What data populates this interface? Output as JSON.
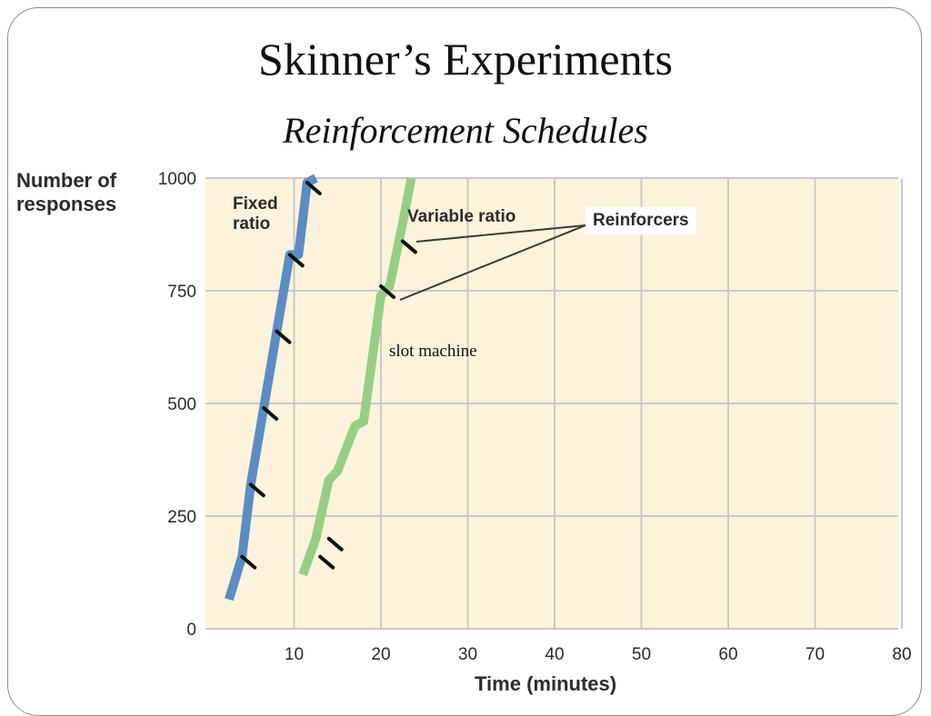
{
  "slide": {
    "title": "Skinner’s Experiments",
    "subtitle": "Reinforcement Schedules"
  },
  "chart_data": {
    "type": "line",
    "ylabel": "Number of\nresponses",
    "xlabel": "Time (minutes)",
    "xlim": [
      0,
      80
    ],
    "ylim": [
      0,
      1000
    ],
    "x_ticks": [
      10,
      20,
      30,
      40,
      50,
      60,
      70,
      80
    ],
    "y_ticks": [
      0,
      250,
      500,
      750,
      1000
    ],
    "grid": true,
    "colors": {
      "background": "#fdf3dc",
      "grid": "#c9c9c9",
      "fixed": "#5b8cc4",
      "variable": "#95cf86"
    },
    "series": [
      {
        "name": "Fixed\nratio",
        "color": "#5b8cc4",
        "x": [
          2.5,
          4,
          5,
          6.5,
          8,
          9.5,
          10.5,
          11.5,
          12.5
        ],
        "y": [
          65,
          160,
          320,
          490,
          660,
          830,
          830,
          990,
          1000
        ],
        "reinforcer_x": [
          4,
          5,
          6.5,
          8,
          9.5,
          11.5
        ],
        "reinforcer_y": [
          160,
          320,
          490,
          660,
          830,
          990
        ]
      },
      {
        "name": "Variable ratio",
        "color": "#95cf86",
        "x": [
          11,
          12.5,
          14,
          15,
          17,
          18,
          20,
          21,
          22.5,
          23.5
        ],
        "y": [
          120,
          200,
          330,
          350,
          450,
          460,
          740,
          760,
          900,
          1000
        ],
        "reinforcer_x": [
          13,
          14,
          20,
          22.5
        ],
        "reinforcer_y": [
          160,
          200,
          760,
          860
        ]
      }
    ],
    "callout": "Reinforcers",
    "annotation": "slot machine"
  }
}
